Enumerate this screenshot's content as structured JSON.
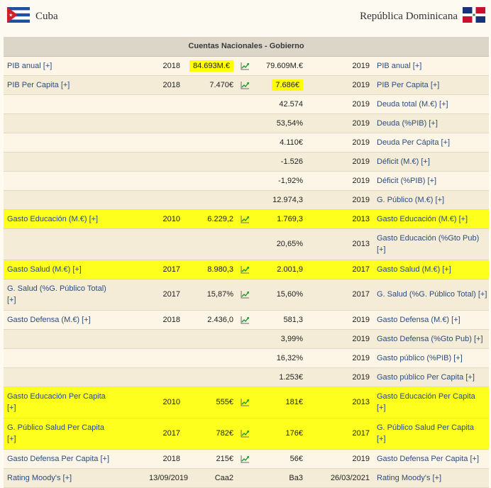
{
  "header": {
    "left_country": "Cuba",
    "right_country": "República Dominicana",
    "left_flag": "cuba-flag",
    "right_flag": "dominican-republic-flag"
  },
  "section_title": "Cuentas Nacionales - Gobierno",
  "colors": {
    "highlight": "#ffff00",
    "link": "#2b4c7e",
    "row_odd": "#fdf6e6",
    "row_even": "#f4ecd7"
  },
  "rows": [
    {
      "label": "PIB anual",
      "more": "[+]",
      "year": "2018",
      "value": "84.693M.€",
      "chart": true,
      "rvalue": "79.609M.€",
      "ryear": "2019",
      "rlabel": "PIB anual",
      "rmore": "[+]"
    },
    {
      "label": "PIB Per Capita",
      "more": "[+]",
      "year": "2018",
      "value": "7.470€",
      "chart": true,
      "rvalue": "7.686€",
      "ryear": "2019",
      "rlabel": "PIB Per Capita",
      "rmore": "[+]"
    },
    {
      "rvalue": "42.574",
      "ryear": "2019",
      "rlabel": "Deuda total (M.€)",
      "rmore": "[+]"
    },
    {
      "rvalue": "53,54%",
      "ryear": "2019",
      "rlabel": "Deuda (%PIB)",
      "rmore": "[+]"
    },
    {
      "rvalue": "4.110€",
      "ryear": "2019",
      "rlabel": "Deuda Per Cápita",
      "rmore": "[+]"
    },
    {
      "rvalue": "-1.526",
      "ryear": "2019",
      "rlabel": "Déficit (M.€)",
      "rmore": "[+]"
    },
    {
      "rvalue": "-1,92%",
      "ryear": "2019",
      "rlabel": "Déficit (%PIB)",
      "rmore": "[+]"
    },
    {
      "rvalue": "12.974,3",
      "ryear": "2019",
      "rlabel": "G. Público (M.€)",
      "rmore": "[+]"
    },
    {
      "label": "Gasto Educación (M.€)",
      "more": "[+]",
      "year": "2010",
      "value": "6.229,2",
      "chart": true,
      "rvalue": "1.769,3",
      "ryear": "2013",
      "rlabel": "Gasto Educación (M.€)",
      "rmore": "[+]"
    },
    {
      "rvalue": "20,65%",
      "ryear": "2013",
      "rlabel": "Gasto Educación (%Gto Pub)",
      "rmore": "[+]"
    },
    {
      "label": "Gasto Salud (M.€)",
      "more": "[+]",
      "year": "2017",
      "value": "8.980,3",
      "chart": true,
      "rvalue": "2.001,9",
      "ryear": "2017",
      "rlabel": "Gasto Salud (M.€)",
      "rmore": "[+]"
    },
    {
      "label": "G. Salud (%G. Público Total)",
      "more": "[+]",
      "year": "2017",
      "value": "15,87%",
      "chart": true,
      "rvalue": "15,60%",
      "ryear": "2017",
      "rlabel": "G. Salud (%G. Público Total)",
      "rmore": "[+]"
    },
    {
      "label": "Gasto Defensa (M.€)",
      "more": "[+]",
      "year": "2018",
      "value": "2.436,0",
      "chart": true,
      "rvalue": "581,3",
      "ryear": "2019",
      "rlabel": "Gasto Defensa (M.€)",
      "rmore": "[+]"
    },
    {
      "rvalue": "3,99%",
      "ryear": "2019",
      "rlabel": "Gasto Defensa (%Gto Pub)",
      "rmore": "[+]"
    },
    {
      "rvalue": "16,32%",
      "ryear": "2019",
      "rlabel": "Gasto público (%PIB)",
      "rmore": "[+]"
    },
    {
      "rvalue": "1.253€",
      "ryear": "2019",
      "rlabel": "Gasto público Per Capita",
      "rmore": "[+]"
    },
    {
      "label": "Gasto Educación Per Capita",
      "more": "[+]",
      "year": "2010",
      "value": "555€",
      "chart": true,
      "rvalue": "181€",
      "ryear": "2013",
      "rlabel": "Gasto Educación Per Capita",
      "rmore": "[+]"
    },
    {
      "label": "G. Público Salud Per Capita",
      "more": "[+]",
      "year": "2017",
      "value": "782€",
      "chart": true,
      "rvalue": "176€",
      "ryear": "2017",
      "rlabel": "G. Público Salud Per Capita",
      "rmore": "[+]"
    },
    {
      "label": "Gasto Defensa Per Capita",
      "more": "[+]",
      "year": "2018",
      "value": "215€",
      "chart": true,
      "rvalue": "56€",
      "ryear": "2019",
      "rlabel": "Gasto Defensa Per Capita",
      "rmore": "[+]"
    },
    {
      "label": "Rating Moody's",
      "more": "[+]",
      "year": "13/09/2019",
      "value": "Caa2",
      "rvalue": "Ba3",
      "ryear": "26/03/2021",
      "rlabel": "Rating Moody's",
      "rmore": "[+]"
    }
  ]
}
